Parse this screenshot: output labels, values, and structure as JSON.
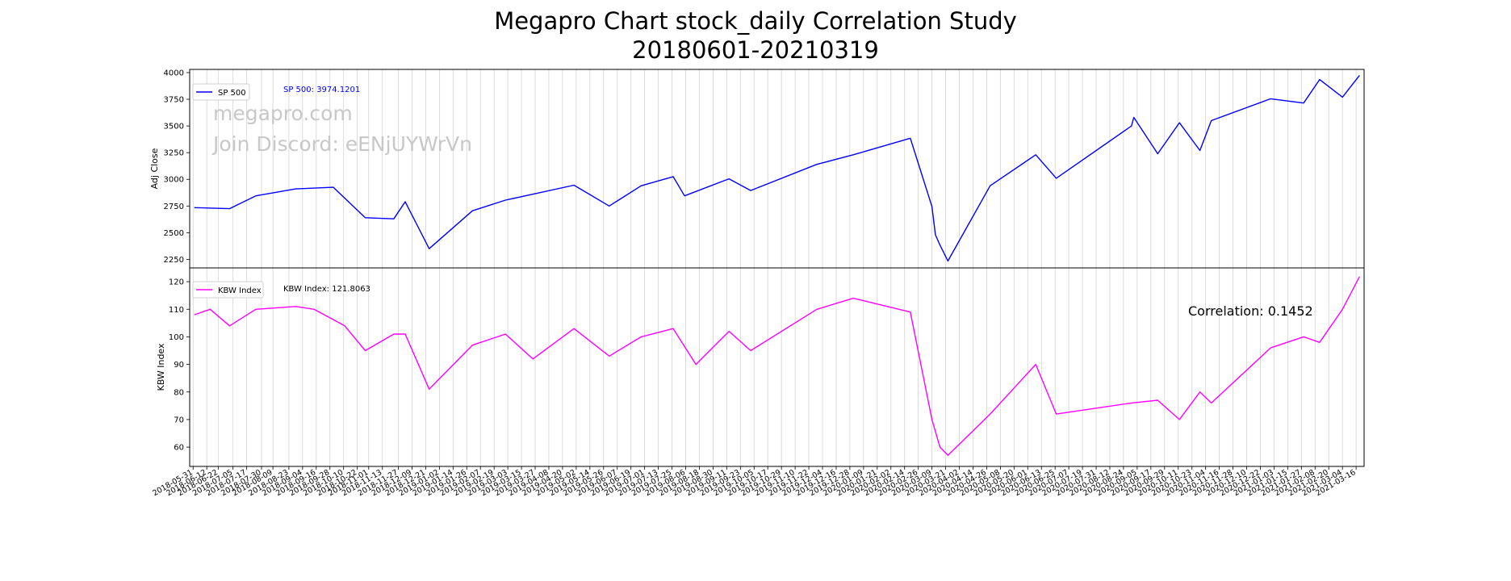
{
  "title_line1": "Megapro Chart stock_daily Correlation Study",
  "title_line2": "20180601-20210319",
  "watermark": [
    "megapro.com",
    "Join Discord: eENjUYWrVn"
  ],
  "correlation_text": "Correlation: 0.1452",
  "colors": {
    "sp500": "#0000ff",
    "kbw": "#ff00ff",
    "grid": "#d3d3d3",
    "watermark": "#c8c8c8"
  },
  "chart_data": [
    {
      "type": "line",
      "ylabel": "Adj Close",
      "yticks": [
        2250,
        2500,
        2750,
        3000,
        3250,
        3500,
        3750,
        4000
      ],
      "ylim": [
        2170,
        4030
      ],
      "legend": "SP 500",
      "legend_placement": "upper-left",
      "last_value_label": "SP 500: 3974.1201",
      "series": [
        {
          "name": "SP 500",
          "x": [
            "2018-06-01",
            "2018-07-02",
            "2018-07-25",
            "2018-08-29",
            "2018-10-01",
            "2018-10-29",
            "2018-11-23",
            "2018-12-03",
            "2018-12-24",
            "2019-01-31",
            "2019-03-01",
            "2019-04-30",
            "2019-05-31",
            "2019-06-28",
            "2019-07-26",
            "2019-08-05",
            "2019-09-13",
            "2019-10-02",
            "2019-11-29",
            "2019-12-31",
            "2020-02-19",
            "2020-03-09",
            "2020-03-12",
            "2020-03-16",
            "2020-03-23",
            "2020-04-29",
            "2020-06-08",
            "2020-06-26",
            "2020-08-31",
            "2020-09-02",
            "2020-09-23",
            "2020-10-12",
            "2020-10-30",
            "2020-11-09",
            "2020-12-31",
            "2021-01-29",
            "2021-02-12",
            "2021-03-04",
            "2021-03-19"
          ],
          "y": [
            2735,
            2725,
            2845,
            2910,
            2925,
            2640,
            2630,
            2790,
            2350,
            2705,
            2805,
            2945,
            2750,
            2940,
            3025,
            2845,
            3005,
            2895,
            3140,
            3230,
            3385,
            2745,
            2480,
            2385,
            2235,
            2940,
            3230,
            3010,
            3500,
            3580,
            3240,
            3530,
            3270,
            3550,
            3755,
            3715,
            3935,
            3770,
            3974.1201
          ]
        }
      ]
    },
    {
      "type": "line",
      "ylabel": "KBW Index",
      "yticks": [
        60,
        70,
        80,
        90,
        100,
        110,
        120
      ],
      "ylim": [
        53,
        125
      ],
      "legend": "KBW Index",
      "legend_placement": "upper-left",
      "last_value_label": "KBW Index: 121.8063",
      "series": [
        {
          "name": "KBW Index",
          "x": [
            "2018-06-01",
            "2018-06-15",
            "2018-07-02",
            "2018-07-25",
            "2018-08-29",
            "2018-09-14",
            "2018-10-11",
            "2018-10-29",
            "2018-11-23",
            "2018-12-03",
            "2018-12-24",
            "2019-01-31",
            "2019-03-01",
            "2019-03-25",
            "2019-04-30",
            "2019-05-31",
            "2019-06-28",
            "2019-07-26",
            "2019-08-15",
            "2019-09-13",
            "2019-10-02",
            "2019-11-29",
            "2019-12-31",
            "2020-02-19",
            "2020-03-09",
            "2020-03-16",
            "2020-03-23",
            "2020-04-29",
            "2020-06-08",
            "2020-06-26",
            "2020-08-31",
            "2020-09-23",
            "2020-10-12",
            "2020-10-30",
            "2020-11-09",
            "2020-12-31",
            "2021-01-29",
            "2021-02-12",
            "2021-03-04",
            "2021-03-19"
          ],
          "y": [
            108,
            110,
            104,
            110,
            111,
            110,
            104,
            95,
            101,
            101,
            81,
            97,
            101,
            92,
            103,
            93,
            100,
            103,
            90,
            102,
            95,
            110,
            114,
            109,
            70,
            60,
            57,
            72,
            90,
            72,
            76,
            77,
            70,
            80,
            76,
            96,
            100,
            98,
            110,
            121.8063
          ]
        }
      ]
    }
  ],
  "x_tick_labels": [
    "2018-05-31",
    "2018-06-12",
    "2018-06-22",
    "2018-07-05",
    "2018-07-17",
    "2018-07-30",
    "2018-08-09",
    "2018-08-23",
    "2018-09-04",
    "2018-09-16",
    "2018-09-28",
    "2018-10-10",
    "2018-10-22",
    "2018-11-01",
    "2018-11-13",
    "2018-11-27",
    "2018-12-09",
    "2018-12-21",
    "2019-01-02",
    "2019-01-14",
    "2019-01-26",
    "2019-02-07",
    "2019-02-19",
    "2019-03-03",
    "2019-03-15",
    "2019-03-27",
    "2019-04-08",
    "2019-04-20",
    "2019-05-02",
    "2019-05-14",
    "2019-05-26",
    "2019-06-07",
    "2019-06-19",
    "2019-07-01",
    "2019-07-13",
    "2019-07-25",
    "2019-08-06",
    "2019-08-18",
    "2019-08-30",
    "2019-09-11",
    "2019-09-23",
    "2019-10-05",
    "2019-10-17",
    "2019-10-29",
    "2019-11-10",
    "2019-11-22",
    "2019-12-04",
    "2019-12-16",
    "2019-12-28",
    "2020-01-09",
    "2020-01-21",
    "2020-02-02",
    "2020-02-14",
    "2020-02-26",
    "2020-03-09",
    "2020-03-21",
    "2020-04-02",
    "2020-04-14",
    "2020-04-26",
    "2020-05-08",
    "2020-05-20",
    "2020-06-01",
    "2020-06-13",
    "2020-06-25",
    "2020-07-07",
    "2020-07-19",
    "2020-07-31",
    "2020-08-12",
    "2020-08-24",
    "2020-09-05",
    "2020-09-17",
    "2020-09-29",
    "2020-10-11",
    "2020-10-23",
    "2020-11-04",
    "2020-11-16",
    "2020-11-28",
    "2020-12-10",
    "2020-12-22",
    "2021-01-03",
    "2021-01-15",
    "2021-01-27",
    "2021-02-08",
    "2021-02-20",
    "2021-03-04",
    "2021-03-16"
  ],
  "x_range": [
    "2018-05-28",
    "2021-03-23"
  ]
}
